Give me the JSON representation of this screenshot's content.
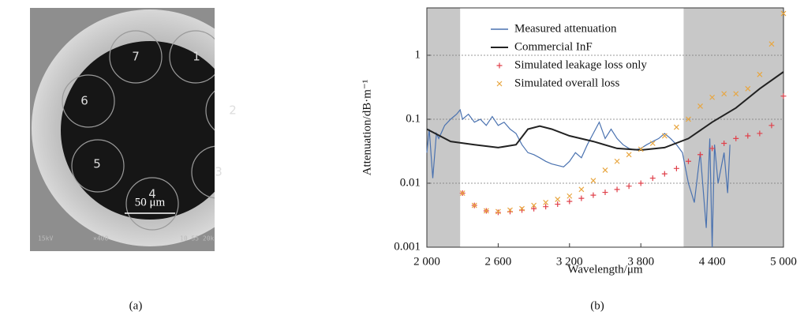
{
  "image_panel": {
    "label": "(a)",
    "core_numbers": [
      "1",
      "2",
      "3",
      "4",
      "5",
      "6",
      "7"
    ],
    "scale_bar": "50 μm",
    "footer": [
      "15kV",
      "×400",
      "10 55 20k"
    ]
  },
  "chart_data": {
    "type": "line",
    "label": "(b)",
    "x_label": "Wavelength/μm",
    "y_label": "Attenuation/dB·m⁻¹",
    "xlim": [
      2000,
      5000
    ],
    "ylim": [
      0.001,
      5.5
    ],
    "log_y": true,
    "grid": true,
    "legend": "upper center",
    "xticks": [
      {
        "value": 2000,
        "label": "2 000"
      },
      {
        "value": 2600,
        "label": "2 600"
      },
      {
        "value": 3200,
        "label": "3 200"
      },
      {
        "value": 3800,
        "label": "3 800"
      },
      {
        "value": 4400,
        "label": "4 400"
      },
      {
        "value": 5000,
        "label": "5 000"
      }
    ],
    "yticks": [
      0.001,
      0.01,
      0.1,
      1
    ],
    "shaded_regions": [
      [
        2000,
        2280
      ],
      [
        4160,
        5000
      ]
    ],
    "shade_color": "#c8c8c8",
    "series": [
      {
        "name": "Measured attenuation",
        "color": "#4a72b0",
        "marker": "line",
        "x": [
          2000,
          2020,
          2050,
          2080,
          2100,
          2150,
          2200,
          2250,
          2280,
          2300,
          2350,
          2400,
          2450,
          2500,
          2550,
          2600,
          2650,
          2700,
          2750,
          2800,
          2850,
          2900,
          2950,
          3000,
          3050,
          3100,
          3150,
          3200,
          3250,
          3300,
          3350,
          3400,
          3450,
          3500,
          3550,
          3600,
          3650,
          3700,
          3750,
          3800,
          3850,
          3900,
          3950,
          4000,
          4050,
          4100,
          4150,
          4200,
          4250,
          4300,
          4350,
          4380,
          4400,
          4420,
          4450,
          4500,
          4530,
          4550
        ],
        "values": [
          0.03,
          0.07,
          0.012,
          0.06,
          0.05,
          0.08,
          0.1,
          0.12,
          0.14,
          0.1,
          0.12,
          0.09,
          0.1,
          0.08,
          0.11,
          0.08,
          0.09,
          0.07,
          0.06,
          0.04,
          0.03,
          0.028,
          0.025,
          0.022,
          0.02,
          0.019,
          0.018,
          0.022,
          0.03,
          0.025,
          0.04,
          0.06,
          0.09,
          0.05,
          0.07,
          0.05,
          0.04,
          0.035,
          0.033,
          0.035,
          0.04,
          0.045,
          0.05,
          0.06,
          0.05,
          0.04,
          0.03,
          0.01,
          0.005,
          0.03,
          0.002,
          0.05,
          0.001,
          0.04,
          0.01,
          0.03,
          0.007,
          0.04
        ]
      },
      {
        "name": "Commercial InF",
        "color": "#222222",
        "marker": "line",
        "x": [
          2000,
          2200,
          2400,
          2600,
          2750,
          2850,
          2950,
          3050,
          3200,
          3400,
          3600,
          3800,
          4000,
          4200,
          4400,
          4600,
          4800,
          5000
        ],
        "values": [
          0.07,
          0.045,
          0.04,
          0.036,
          0.04,
          0.07,
          0.078,
          0.07,
          0.055,
          0.045,
          0.035,
          0.033,
          0.036,
          0.05,
          0.09,
          0.15,
          0.3,
          0.55
        ]
      },
      {
        "name": "Simulated leakage loss only",
        "color": "#e0404a",
        "marker": "plus",
        "x": [
          2300,
          2400,
          2500,
          2600,
          2700,
          2800,
          2900,
          3000,
          3100,
          3200,
          3300,
          3400,
          3500,
          3600,
          3700,
          3800,
          3900,
          4000,
          4100,
          4200,
          4300,
          4400,
          4500,
          4600,
          4700,
          4800,
          4900,
          5000
        ],
        "values": [
          0.007,
          0.0045,
          0.0037,
          0.0035,
          0.0036,
          0.0038,
          0.004,
          0.0043,
          0.0047,
          0.0052,
          0.0058,
          0.0065,
          0.0072,
          0.008,
          0.009,
          0.01,
          0.012,
          0.014,
          0.017,
          0.022,
          0.028,
          0.035,
          0.042,
          0.05,
          0.055,
          0.06,
          0.08,
          0.23
        ]
      },
      {
        "name": "Simulated overall loss",
        "color": "#e8a640",
        "marker": "cross",
        "x": [
          2300,
          2400,
          2500,
          2600,
          2700,
          2800,
          2900,
          3000,
          3100,
          3200,
          3300,
          3400,
          3500,
          3600,
          3700,
          3800,
          3900,
          4000,
          4100,
          4200,
          4300,
          4400,
          4500,
          4600,
          4700,
          4800,
          4900,
          5000
        ],
        "values": [
          0.007,
          0.0045,
          0.0037,
          0.0036,
          0.0038,
          0.004,
          0.0045,
          0.005,
          0.0056,
          0.0063,
          0.008,
          0.011,
          0.016,
          0.022,
          0.028,
          0.034,
          0.042,
          0.055,
          0.075,
          0.1,
          0.16,
          0.22,
          0.25,
          0.25,
          0.3,
          0.5,
          1.5,
          4.5
        ]
      }
    ]
  }
}
